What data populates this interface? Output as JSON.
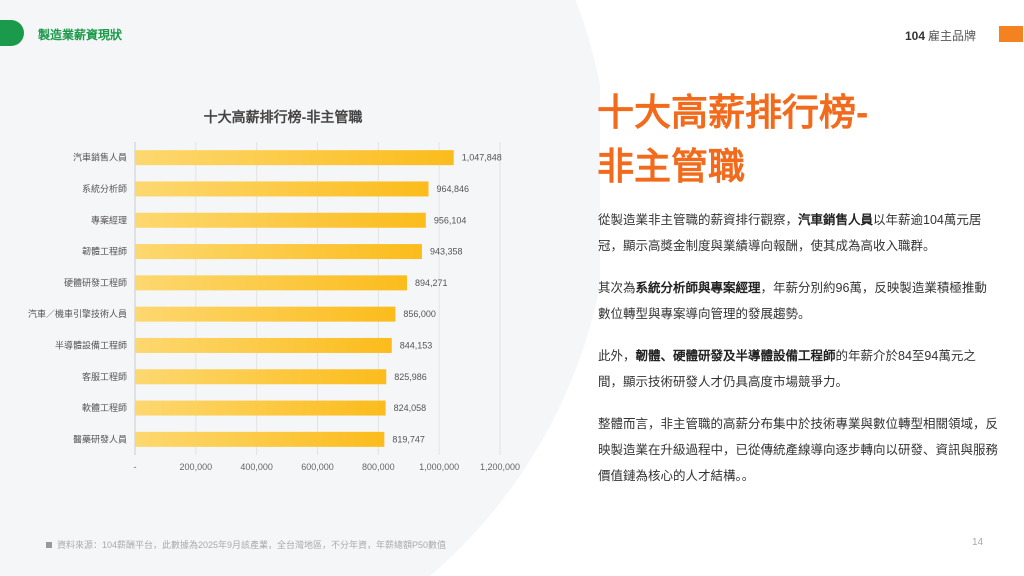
{
  "header": {
    "section": "製造業薪資現狀",
    "logo_num": "104",
    "logo_text": "雇主品牌"
  },
  "headline": {
    "line1": "十大高薪排行榜-",
    "line2": "非主管職"
  },
  "paragraphs": [
    {
      "a": "從製造業非主管職的薪資排行觀察，",
      "b": "汽車銷售人員",
      "c": "以年薪逾104萬元居冠，顯示高獎金制度與業績導向報酬，使其成為高收入職群。"
    },
    {
      "a": "其次為",
      "b": "系統分析師與專案經理",
      "c": "，年薪分別約96萬，反映製造業積極推動數位轉型與專案導向管理的發展趨勢。"
    },
    {
      "a": "此外，",
      "b": "韌體、硬體研發及半導體設備工程師",
      "c": "的年薪介於84至94萬元之間，顯示技術研發人才仍具高度市場競爭力。"
    },
    {
      "a": "整體而言，非主管職的高薪分布集中於技術專業與數位轉型相關領域，反映製造業在升級過程中，已從傳統產線導向逐步轉向以研發、資訊與服務價值鏈為核心的人才結構。。",
      "b": "",
      "c": ""
    }
  ],
  "footer": {
    "source": "資料來源：104薪酬平台，此數據為2025年9月該產業，全台灣地區，不分年資，年薪總額P50數值",
    "page": "14"
  },
  "chart_data": {
    "type": "bar",
    "orientation": "horizontal",
    "title": "十大高薪排行榜-非主管職",
    "categories": [
      "汽車銷售人員",
      "系統分析師",
      "專案經理",
      "韌體工程師",
      "硬體研發工程師",
      "汽車／機車引擎技術人員",
      "半導體設備工程師",
      "客服工程師",
      "軟體工程師",
      "醫藥研發人員"
    ],
    "values": [
      1047848,
      964846,
      956104,
      943358,
      894271,
      856000,
      844153,
      825986,
      824058,
      819747
    ],
    "value_labels": [
      "1,047,848",
      "964,846",
      "956,104",
      "943,358",
      "894,271",
      "856,000",
      "844,153",
      "825,986",
      "824,058",
      "819,747"
    ],
    "xlim": [
      0,
      1200000
    ],
    "xticks": [
      "-",
      "200,000",
      "400,000",
      "600,000",
      "800,000",
      "1,000,000",
      "1,200,000"
    ],
    "grid": true,
    "colors": {
      "bar_start": "#fdd870",
      "bar_end": "#fbbc1c"
    }
  }
}
